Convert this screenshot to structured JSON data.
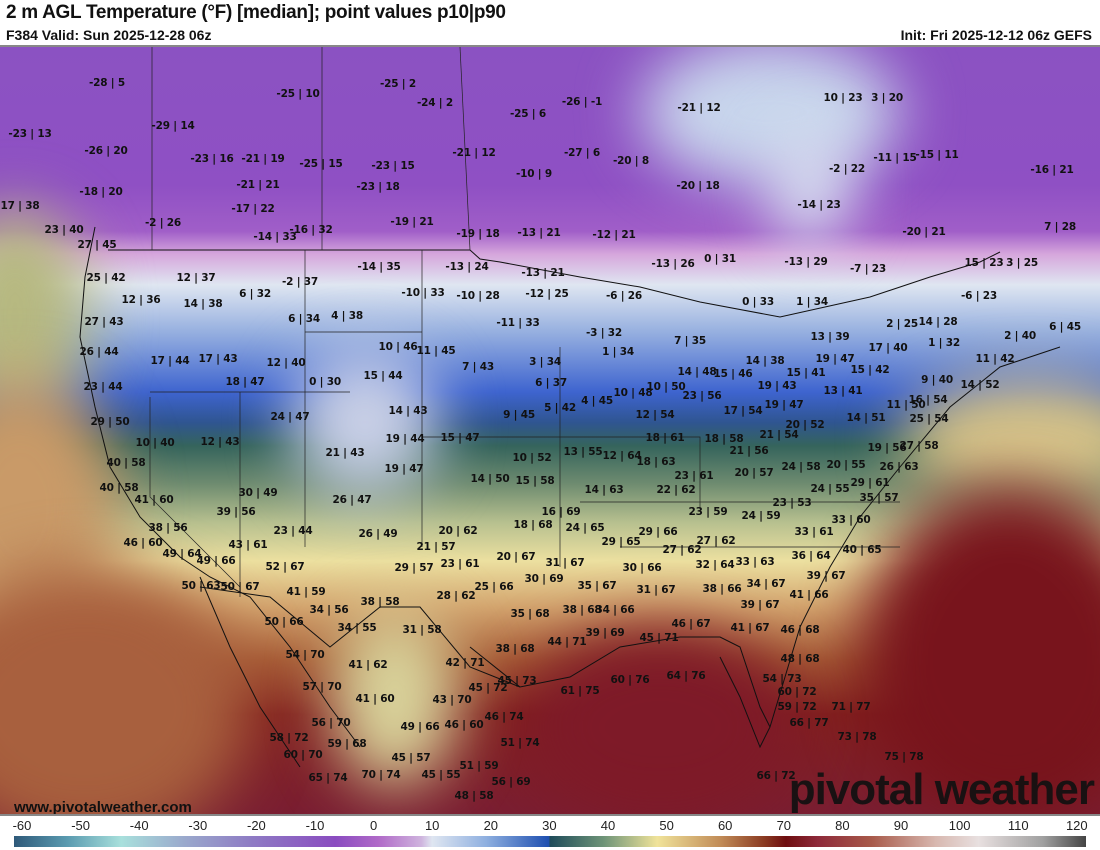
{
  "header": {
    "title": "2 m AGL Temperature (°F) [median]; point values p10|p90",
    "valid": "F384 Valid: Sun 2025-12-28 06z",
    "init": "Init: Fri 2025-12-12 06z GEFS"
  },
  "watermark": {
    "site": "www.pivotalweather.com",
    "brand": "pivotal weather"
  },
  "colorbar": {
    "labels": [
      "-60",
      "-50",
      "-40",
      "-30",
      "-20",
      "-10",
      "0",
      "10",
      "20",
      "30",
      "40",
      "50",
      "60",
      "70",
      "80",
      "90",
      "100",
      "110",
      "120"
    ]
  },
  "point_values": [
    "-28 | 5",
    "-25 | 10",
    "-25 | 2",
    "-24 | 2",
    "-25 | 6",
    "-26 | -1",
    "-21 | 12",
    "10 | 23",
    "3 | 20",
    "-23 | 13",
    "-29 | 14",
    "-26 | 20",
    "-23 | 16",
    "-21 | 19",
    "-25 | 15",
    "-23 | 15",
    "-21 | 12",
    "-27 | 6",
    "-20 | 8",
    "-10 | 9",
    "-2 | 22",
    "-11 | 15",
    "-15 | 11",
    "-16 | 21",
    "-18 | 20",
    "-21 | 21",
    "-23 | 18",
    "-20 | 18",
    "17 | 38",
    "-17 | 22",
    "-14 | 23",
    "-2 | 26",
    "-19 | 21",
    "-14 | 33",
    "-16 | 32",
    "23 | 40",
    "-19 | 18",
    "-13 | 21",
    "-12 | 21",
    "-20 | 21",
    "7 | 28",
    "27 | 45",
    "-13 | 26",
    "0 | 31",
    "-13 | 29",
    "-7 | 23",
    "15 | 23",
    "3 | 25",
    "25 | 42",
    "12 | 37",
    "-14 | 35",
    "-13 | 24",
    "-13 | 21",
    "-2 | 37",
    "-10 | 33",
    "-10 | 28",
    "-12 | 25",
    "-6 | 26",
    "-6 | 23",
    "12 | 36",
    "14 | 38",
    "6 | 32",
    "0 | 33",
    "1 | 34",
    "27 | 43",
    "6 | 34",
    "4 | 38",
    "-11 | 33",
    "-3 | 32",
    "2 | 25",
    "14 | 28",
    "6 | 45",
    "7 | 35",
    "13 | 39",
    "1 | 32",
    "2 | 40",
    "26 | 44",
    "17 | 44",
    "17 | 43",
    "10 | 46",
    "11 | 45",
    "1 | 34",
    "12 | 40",
    "17 | 40",
    "11 | 42",
    "3 | 34",
    "7 | 43",
    "19 | 47",
    "15 | 42",
    "14 | 48",
    "15 | 46",
    "14 | 38",
    "15 | 41",
    "9 | 40",
    "0 | 30",
    "15 | 44",
    "18 | 47",
    "6 | 37",
    "23 | 44",
    "10 | 50",
    "10 | 48",
    "4 | 45",
    "23 | 56",
    "19 | 43",
    "13 | 41",
    "14 | 52",
    "16 | 54",
    "5 | 42",
    "9 | 45",
    "14 | 43",
    "19 | 47",
    "17 | 54",
    "12 | 54",
    "11 | 50",
    "24 | 47",
    "29 | 50",
    "14 | 51",
    "25 | 54",
    "20 | 52",
    "21 | 54",
    "15 | 47",
    "10 | 40",
    "12 | 43",
    "19 | 44",
    "18 | 61",
    "18 | 58",
    "27 | 58",
    "19 | 56",
    "13 | 55",
    "12 | 64",
    "21 | 43",
    "21 | 56",
    "18 | 63",
    "10 | 52",
    "40 | 58",
    "24 | 58",
    "20 | 55",
    "26 | 63",
    "19 | 47",
    "23 | 61",
    "20 | 57",
    "14 | 50",
    "15 | 58",
    "40 | 58",
    "14 | 63",
    "22 | 62",
    "24 | 55",
    "29 | 61",
    "30 | 49",
    "26 | 47",
    "41 | 60",
    "35 | 57",
    "39 | 56",
    "16 | 69",
    "23 | 53",
    "23 | 59",
    "24 | 59",
    "33 | 60",
    "18 | 68",
    "24 | 65",
    "23 | 44",
    "38 | 56",
    "20 | 62",
    "33 | 61",
    "26 | 49",
    "29 | 66",
    "29 | 65",
    "46 | 60",
    "43 | 61",
    "27 | 62",
    "21 | 57",
    "40 | 65",
    "49 | 64",
    "27 | 62",
    "36 | 64",
    "20 | 67",
    "49 | 66",
    "32 | 64",
    "33 | 63",
    "31 | 67",
    "52 | 67",
    "29 | 57",
    "23 | 61",
    "30 | 66",
    "39 | 67",
    "30 | 69",
    "50 | 63",
    "50 | 67",
    "35 | 67",
    "25 | 66",
    "41 | 59",
    "31 | 67",
    "38 | 66",
    "34 | 67",
    "28 | 62",
    "41 | 66",
    "38 | 58",
    "34 | 56",
    "38 | 68",
    "34 | 66",
    "39 | 67",
    "35 | 68",
    "50 | 66",
    "34 | 55",
    "31 | 58",
    "46 | 67",
    "41 | 67",
    "46 | 68",
    "39 | 69",
    "45 | 71",
    "44 | 71",
    "38 | 68",
    "54 | 70",
    "42 | 71",
    "41 | 62",
    "48 | 68",
    "45 | 73",
    "61 | 75",
    "60 | 76",
    "64 | 76",
    "54 | 73",
    "45 | 72",
    "57 | 70",
    "60 | 72",
    "43 | 70",
    "41 | 60",
    "71 | 77",
    "59 | 72",
    "46 | 74",
    "56 | 70",
    "46 | 60",
    "49 | 66",
    "66 | 77",
    "58 | 72",
    "51 | 74",
    "59 | 68",
    "73 | 78",
    "60 | 70",
    "45 | 57",
    "75 | 78",
    "51 | 59",
    "65 | 74",
    "70 | 74",
    "45 | 55",
    "56 | 69",
    "66 | 72",
    "48 | 58"
  ]
}
